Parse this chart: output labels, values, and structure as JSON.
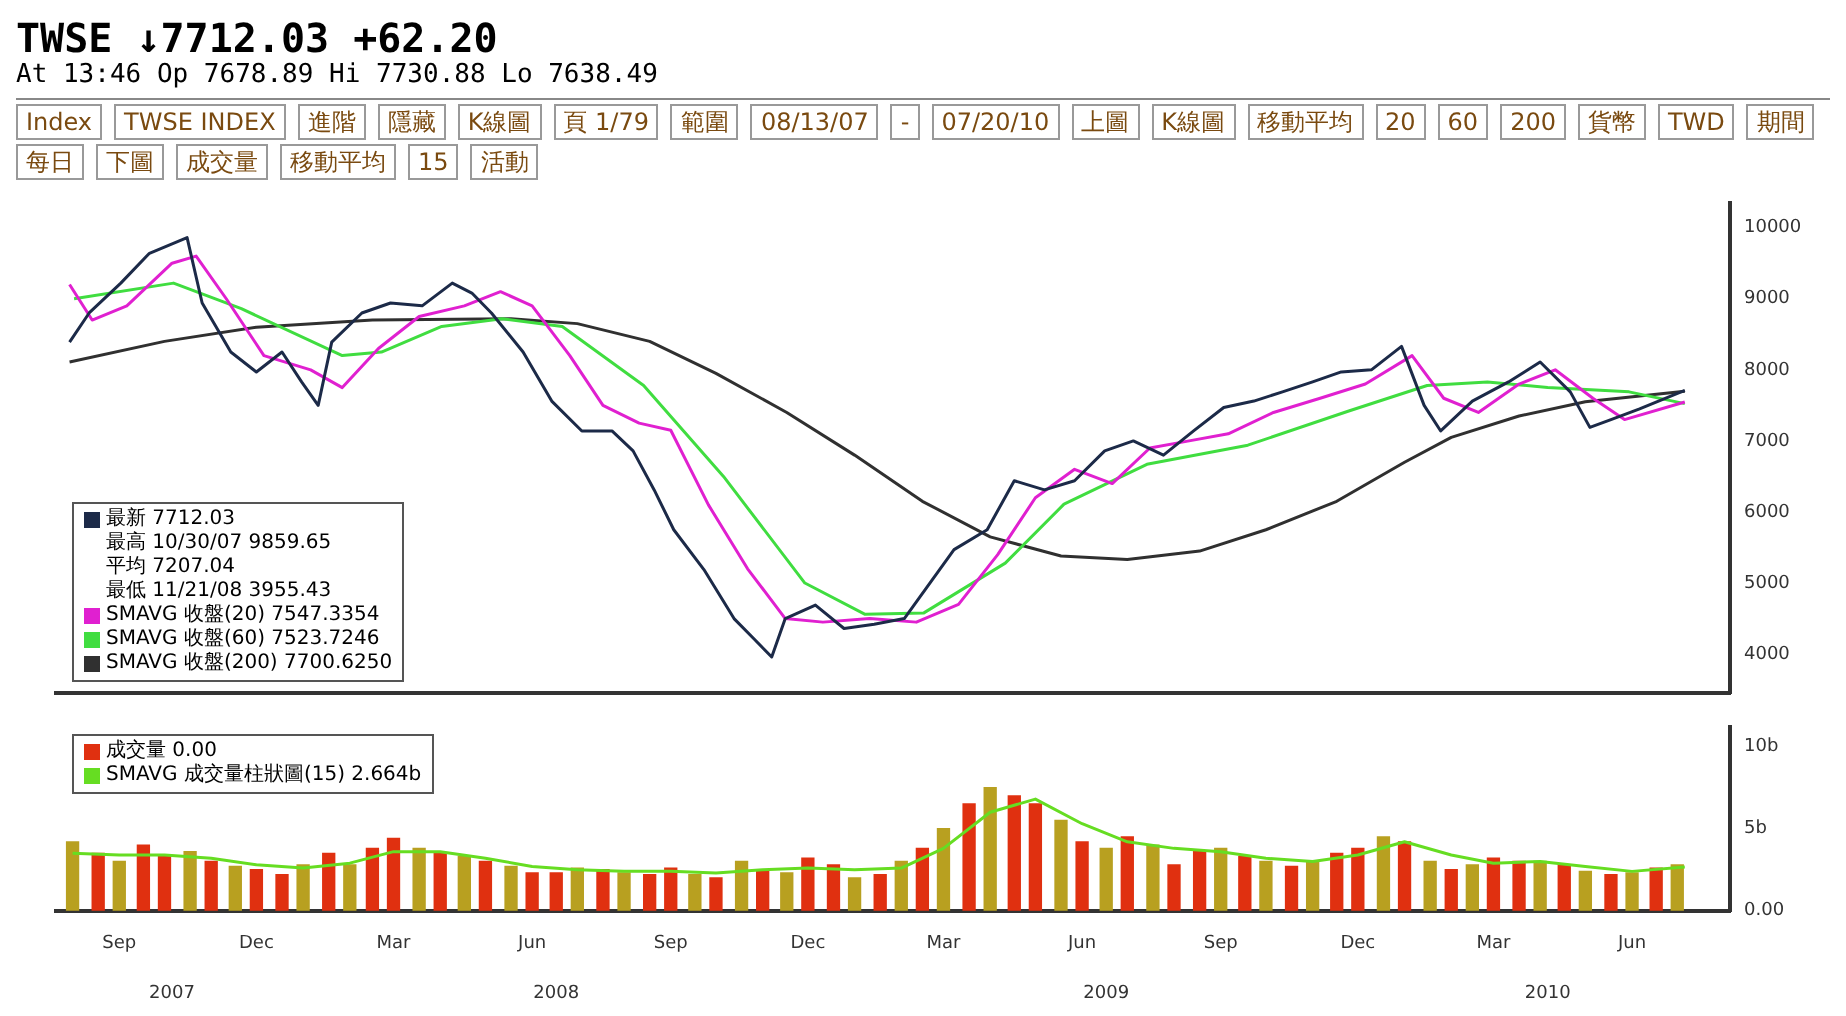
{
  "chart_data": [
    {
      "type": "other",
      "title": "TWSE ↓7712.03 +62.20",
      "subtitle": "At 13:46 Op 7678.89 Hi 7730.88 Lo 7638.49",
      "annotations": [
        "Index",
        "TWSE INDEX",
        "進階",
        "隱藏",
        "K線圖",
        "頁 1/79",
        "範圍",
        "08/13/07",
        "-",
        "07/20/10",
        "上圖",
        "K線圖",
        "移動平均",
        "20",
        "60",
        "200",
        "貨幣",
        "TWD",
        "期間",
        "每日",
        "下圖",
        "成交量",
        "移動平均",
        "15",
        "活動"
      ]
    },
    {
      "type": "line",
      "annotations": [
        "最高 10/30/07 9859.65",
        "平均 7207.04",
        "最低 11/21/08 3955.43"
      ],
      "xlim": [
        "2007-08-04",
        "2010-08-19"
      ],
      "tick_labels": "y",
      "ylim": [
        3450,
        10350
      ],
      "yticks": [
        4000,
        5000,
        6000,
        7000,
        8000,
        9000,
        10000
      ],
      "legend": "bottom left",
      "marker": "none",
      "series": [
        {
          "name": "最新 7712.03",
          "color": "#1c2a48",
          "x": [
            "2007-08-13",
            "2007-08-26",
            "2007-09-16",
            "2007-10-05",
            "2007-10-30",
            "2007-11-09",
            "2007-11-28",
            "2007-12-15",
            "2008-01-01",
            "2008-01-14",
            "2008-01-25",
            "2008-02-03",
            "2008-02-23",
            "2008-03-13",
            "2008-04-03",
            "2008-04-23",
            "2008-05-06",
            "2008-05-19",
            "2008-06-09",
            "2008-06-28",
            "2008-07-18",
            "2008-08-07",
            "2008-08-21",
            "2008-09-04",
            "2008-09-17",
            "2008-10-07",
            "2008-10-27",
            "2008-11-09",
            "2008-11-21",
            "2008-11-30",
            "2008-12-20",
            "2009-01-08",
            "2009-01-28",
            "2009-02-17",
            "2009-03-08",
            "2009-03-22",
            "2009-04-13",
            "2009-05-01",
            "2009-05-21",
            "2009-06-10",
            "2009-06-30",
            "2009-07-19",
            "2009-08-08",
            "2009-08-28",
            "2009-09-17",
            "2009-10-07",
            "2009-10-26",
            "2009-11-15",
            "2009-12-04",
            "2009-12-24",
            "2010-01-13",
            "2010-01-28",
            "2010-02-08",
            "2010-03-01",
            "2010-03-25",
            "2010-04-15",
            "2010-05-05",
            "2010-05-18",
            "2010-06-01",
            "2010-06-20",
            "2010-07-20"
          ],
          "values": [
            8390,
            8800,
            9220,
            9640,
            9860,
            8940,
            8250,
            7970,
            8250,
            7830,
            7500,
            8390,
            8800,
            8940,
            8900,
            9220,
            9080,
            8800,
            8250,
            7560,
            7140,
            7140,
            6860,
            6310,
            5750,
            5190,
            4500,
            4220,
            3960,
            4500,
            4690,
            4360,
            4420,
            4500,
            5060,
            5470,
            5750,
            6440,
            6310,
            6440,
            6860,
            7000,
            6800,
            7140,
            7470,
            7560,
            7690,
            7830,
            7970,
            8000,
            8330,
            7500,
            7140,
            7560,
            7830,
            8110,
            7690,
            7190,
            7300,
            7450,
            7712
          ]
        },
        {
          "name": "SMAVG 收盤(20) 7547.3354",
          "color": "#e020d0",
          "x": [
            "2007-08-13",
            "2007-08-28",
            "2007-09-20",
            "2007-10-20",
            "2007-11-05",
            "2007-11-25",
            "2007-12-20",
            "2008-01-20",
            "2008-02-10",
            "2008-03-05",
            "2008-04-01",
            "2008-05-01",
            "2008-05-25",
            "2008-06-15",
            "2008-07-10",
            "2008-08-01",
            "2008-08-25",
            "2008-09-15",
            "2008-10-10",
            "2008-11-05",
            "2008-11-30",
            "2008-12-25",
            "2009-01-25",
            "2009-02-25",
            "2009-03-25",
            "2009-04-20",
            "2009-05-15",
            "2009-06-10",
            "2009-07-05",
            "2009-07-30",
            "2009-08-25",
            "2009-09-20",
            "2009-10-20",
            "2009-11-20",
            "2009-12-20",
            "2010-01-20",
            "2010-02-10",
            "2010-03-05",
            "2010-04-01",
            "2010-04-25",
            "2010-05-20",
            "2010-06-10",
            "2010-07-20"
          ],
          "values": [
            9200,
            8700,
            8900,
            9500,
            9600,
            9000,
            8200,
            8000,
            7750,
            8300,
            8750,
            8900,
            9100,
            8900,
            8200,
            7500,
            7250,
            7150,
            6100,
            5200,
            4500,
            4450,
            4500,
            4450,
            4700,
            5400,
            6200,
            6600,
            6400,
            6900,
            7000,
            7100,
            7400,
            7600,
            7800,
            8200,
            7600,
            7400,
            7800,
            8000,
            7600,
            7300,
            7547
          ]
        },
        {
          "name": "SMAVG 收盤(60) 7523.7246",
          "color": "#40dd40",
          "x": [
            "2007-08-16",
            "2007-10-21",
            "2007-12-05",
            "2008-02-10",
            "2008-03-07",
            "2008-04-16",
            "2008-05-26",
            "2008-07-05",
            "2008-08-28",
            "2008-10-20",
            "2008-12-13",
            "2009-01-22",
            "2009-03-02",
            "2009-04-25",
            "2009-06-03",
            "2009-07-28",
            "2009-10-03",
            "2009-12-09",
            "2010-01-30",
            "2010-03-11",
            "2010-04-20",
            "2010-06-13",
            "2010-07-20"
          ],
          "values": [
            9000,
            9220,
            8860,
            8200,
            8250,
            8610,
            8720,
            8610,
            7780,
            6500,
            5000,
            4560,
            4580,
            5280,
            6110,
            6670,
            6940,
            7420,
            7780,
            7830,
            7750,
            7690,
            7524
          ]
        },
        {
          "name": "SMAVG 收盤(200) 7700.6250",
          "color": "#303030",
          "x": [
            "2007-08-13",
            "2007-10-15",
            "2007-12-15",
            "2008-03-01",
            "2008-06-01",
            "2008-07-15",
            "2008-09-01",
            "2008-10-15",
            "2008-12-01",
            "2009-01-15",
            "2009-03-01",
            "2009-04-15",
            "2009-06-01",
            "2009-07-15",
            "2009-09-01",
            "2009-10-15",
            "2009-12-01",
            "2010-01-15",
            "2010-02-15",
            "2010-04-01",
            "2010-05-15",
            "2010-07-20"
          ],
          "values": [
            8110,
            8400,
            8600,
            8700,
            8720,
            8650,
            8400,
            7950,
            7400,
            6800,
            6150,
            5650,
            5380,
            5330,
            5450,
            5750,
            6150,
            6700,
            7050,
            7350,
            7550,
            7700
          ]
        }
      ]
    },
    {
      "type": "bar",
      "xlim": [
        "2007-08-04",
        "2010-08-19"
      ],
      "xticks": [
        {
          "value": "2007-09-15",
          "label": "Sep"
        },
        {
          "value": "2007-12-15",
          "label": "Dec"
        },
        {
          "value": "2008-03-15",
          "label": "Mar"
        },
        {
          "value": "2008-06-15",
          "label": "Jun"
        },
        {
          "value": "2008-09-15",
          "label": "Sep"
        },
        {
          "value": "2008-12-15",
          "label": "Dec"
        },
        {
          "value": "2009-03-15",
          "label": "Mar"
        },
        {
          "value": "2009-06-15",
          "label": "Jun"
        },
        {
          "value": "2009-09-15",
          "label": "Sep"
        },
        {
          "value": "2009-12-15",
          "label": "Dec"
        },
        {
          "value": "2010-03-15",
          "label": "Mar"
        },
        {
          "value": "2010-06-15",
          "label": "Jun"
        }
      ],
      "x2lim": [
        "2007-08-04",
        "2010-08-19"
      ],
      "x2ticks": [
        {
          "value": "2007-10-20",
          "label": "2007"
        },
        {
          "value": "2008-07-01",
          "label": "2008"
        },
        {
          "value": "2009-07-01",
          "label": "2009"
        },
        {
          "value": "2010-04-20",
          "label": "2010"
        }
      ],
      "ylim": [
        0,
        11.2
      ],
      "yticks": [
        {
          "value": 0,
          "label": "0.00"
        },
        {
          "value": 5,
          "label": "5b"
        },
        {
          "value": 10,
          "label": "10b"
        }
      ],
      "legend": "top left",
      "series": [
        {
          "name": "成交量 0.00",
          "color": "#e03010",
          "x": [
            "2007-08-15",
            "2007-09-01",
            "2007-09-15",
            "2007-10-01",
            "2007-10-15",
            "2007-11-01",
            "2007-11-15",
            "2007-12-01",
            "2007-12-15",
            "2008-01-01",
            "2008-01-15",
            "2008-02-01",
            "2008-02-15",
            "2008-03-01",
            "2008-03-15",
            "2008-04-01",
            "2008-04-15",
            "2008-05-01",
            "2008-05-15",
            "2008-06-01",
            "2008-06-15",
            "2008-07-01",
            "2008-07-15",
            "2008-08-01",
            "2008-08-15",
            "2008-09-01",
            "2008-09-15",
            "2008-10-01",
            "2008-10-15",
            "2008-11-01",
            "2008-11-15",
            "2008-12-01",
            "2008-12-15",
            "2009-01-01",
            "2009-01-15",
            "2009-02-01",
            "2009-02-15",
            "2009-03-01",
            "2009-03-15",
            "2009-04-01",
            "2009-04-15",
            "2009-05-01",
            "2009-05-15",
            "2009-06-01",
            "2009-06-15",
            "2009-07-01",
            "2009-07-15",
            "2009-08-01",
            "2009-08-15",
            "2009-09-01",
            "2009-09-15",
            "2009-10-01",
            "2009-10-15",
            "2009-11-01",
            "2009-11-15",
            "2009-12-01",
            "2009-12-15",
            "2010-01-01",
            "2010-01-15",
            "2010-02-01",
            "2010-02-15",
            "2010-03-01",
            "2010-03-15",
            "2010-04-01",
            "2010-04-15",
            "2010-05-01",
            "2010-05-15",
            "2010-06-01",
            "2010-06-15",
            "2010-07-01",
            "2010-07-15"
          ],
          "values": [
            4.2,
            3.5,
            3.0,
            4.0,
            3.3,
            3.6,
            3.0,
            2.7,
            2.5,
            2.2,
            2.8,
            3.5,
            2.8,
            3.8,
            4.4,
            3.8,
            3.5,
            3.3,
            3.0,
            2.7,
            2.3,
            2.3,
            2.6,
            2.5,
            2.3,
            2.2,
            2.6,
            2.2,
            2.0,
            3.0,
            2.5,
            2.3,
            3.2,
            2.8,
            2.0,
            2.2,
            3.0,
            3.8,
            5.0,
            6.5,
            7.5,
            7.0,
            6.5,
            5.5,
            4.2,
            3.8,
            4.5,
            4.0,
            2.8,
            3.6,
            3.8,
            3.3,
            3.0,
            2.7,
            3.0,
            3.5,
            3.8,
            4.5,
            4.2,
            3.0,
            2.5,
            2.8,
            3.2,
            3.0,
            3.0,
            2.8,
            2.4,
            2.2,
            2.3,
            2.6,
            2.8
          ],
          "colors": [
            "#b8a020",
            "#e03010",
            "#b8a020",
            "#e03010",
            "#e03010",
            "#b8a020",
            "#e03010",
            "#b8a020",
            "#e03010",
            "#e03010",
            "#b8a020",
            "#e03010",
            "#b8a020",
            "#e03010",
            "#e03010",
            "#b8a020",
            "#e03010",
            "#b8a020",
            "#e03010",
            "#b8a020",
            "#e03010",
            "#e03010",
            "#b8a020",
            "#e03010",
            "#b8a020",
            "#e03010",
            "#e03010",
            "#b8a020",
            "#e03010",
            "#b8a020",
            "#e03010",
            "#b8a020",
            "#e03010",
            "#e03010",
            "#b8a020",
            "#e03010",
            "#b8a020",
            "#e03010",
            "#b8a020",
            "#e03010",
            "#b8a020",
            "#e03010",
            "#e03010",
            "#b8a020",
            "#e03010",
            "#b8a020",
            "#e03010",
            "#b8a020",
            "#e03010",
            "#e03010",
            "#b8a020",
            "#e03010",
            "#b8a020",
            "#e03010",
            "#b8a020",
            "#e03010",
            "#e03010",
            "#b8a020",
            "#e03010",
            "#b8a020",
            "#e03010",
            "#b8a020",
            "#e03010",
            "#e03010",
            "#b8a020",
            "#e03010",
            "#b8a020",
            "#e03010",
            "#b8a020",
            "#e03010",
            "#b8a020"
          ]
        },
        {
          "type": "line",
          "name": "SMAVG 成交量柱狀圖(15) 2.664b",
          "color": "#66dd22",
          "x": [
            "2007-08-15",
            "2007-09-15",
            "2007-10-15",
            "2007-11-15",
            "2007-12-15",
            "2008-01-15",
            "2008-02-15",
            "2008-03-15",
            "2008-04-15",
            "2008-05-15",
            "2008-06-15",
            "2008-07-15",
            "2008-08-15",
            "2008-09-15",
            "2008-10-15",
            "2008-11-15",
            "2008-12-15",
            "2009-01-15",
            "2009-02-15",
            "2009-03-15",
            "2009-04-15",
            "2009-05-15",
            "2009-06-15",
            "2009-07-15",
            "2009-08-15",
            "2009-09-15",
            "2009-10-15",
            "2009-11-15",
            "2009-12-15",
            "2010-01-15",
            "2010-02-15",
            "2010-03-15",
            "2010-04-15",
            "2010-05-15",
            "2010-06-15",
            "2010-07-20"
          ],
          "values": [
            3.5,
            3.4,
            3.4,
            3.2,
            2.8,
            2.6,
            2.9,
            3.6,
            3.6,
            3.2,
            2.7,
            2.5,
            2.4,
            2.4,
            2.3,
            2.5,
            2.6,
            2.5,
            2.6,
            3.8,
            6.0,
            6.8,
            5.3,
            4.2,
            3.8,
            3.6,
            3.2,
            3.0,
            3.4,
            4.2,
            3.4,
            2.9,
            3.0,
            2.7,
            2.4,
            2.664
          ]
        }
      ]
    }
  ]
}
